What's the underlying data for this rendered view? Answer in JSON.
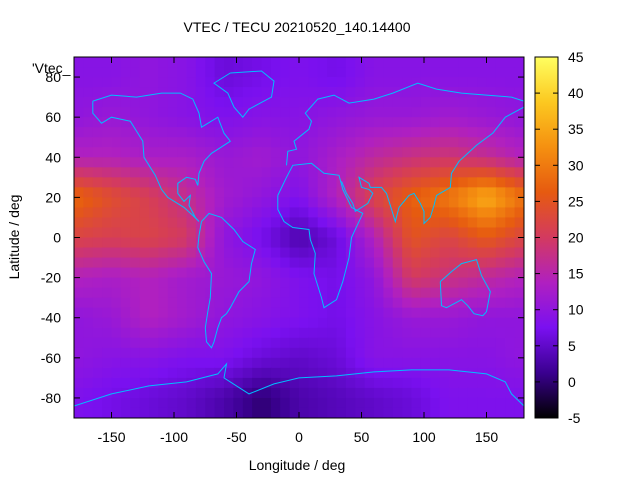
{
  "chart_data": {
    "type": "heatmap",
    "title": "VTEC / TECU 20210520_140.14400",
    "xlabel": "Longitude / deg",
    "ylabel": "Latitude / deg",
    "xlim": [
      -180,
      180
    ],
    "ylim": [
      -90,
      90
    ],
    "xticks": [
      -150,
      -100,
      -50,
      0,
      50,
      100,
      150
    ],
    "yticks": [
      -80,
      -60,
      -40,
      -20,
      0,
      20,
      40,
      60,
      80
    ],
    "colorbar": {
      "range": [
        -5,
        45
      ],
      "ticks": [
        -5,
        0,
        5,
        10,
        15,
        20,
        25,
        30,
        35,
        40,
        45
      ],
      "palette": [
        "#000000",
        "#3a008f",
        "#7a10f0",
        "#b020c0",
        "#d33a60",
        "#e65a10",
        "#f59010",
        "#fcc820",
        "#ffff60"
      ]
    },
    "legend": {
      "label": "'Vtec_",
      "position": "top-left"
    },
    "grid_lon": [
      -180,
      -150,
      -120,
      -90,
      -60,
      -30,
      0,
      30,
      60,
      90,
      120,
      150,
      180
    ],
    "grid_lat": [
      80,
      60,
      40,
      20,
      0,
      -20,
      -40,
      -60,
      -80
    ],
    "vtec_grid": [
      [
        9,
        9,
        10,
        9,
        6,
        7,
        8,
        7,
        9,
        9,
        9,
        9,
        9
      ],
      [
        10,
        11,
        10,
        9,
        8,
        9,
        9,
        10,
        11,
        11,
        12,
        11,
        10
      ],
      [
        14,
        14,
        13,
        13,
        11,
        12,
        10,
        13,
        16,
        18,
        19,
        17,
        14
      ],
      [
        28,
        24,
        21,
        17,
        12,
        10,
        8,
        14,
        22,
        27,
        30,
        36,
        29
      ],
      [
        22,
        21,
        22,
        20,
        10,
        7,
        3,
        6,
        14,
        25,
        22,
        26,
        22
      ],
      [
        14,
        13,
        14,
        12,
        11,
        10,
        8,
        7,
        10,
        20,
        18,
        16,
        14
      ],
      [
        10,
        11,
        14,
        12,
        10,
        9,
        8,
        7,
        9,
        11,
        11,
        10,
        10
      ],
      [
        10,
        9,
        9,
        8,
        8,
        6,
        5,
        6,
        9,
        9,
        9,
        9,
        10
      ],
      [
        8,
        7,
        6,
        5,
        3,
        0,
        3,
        4,
        5,
        6,
        8,
        8,
        8
      ]
    ],
    "coastline_color": "#00bfff"
  }
}
